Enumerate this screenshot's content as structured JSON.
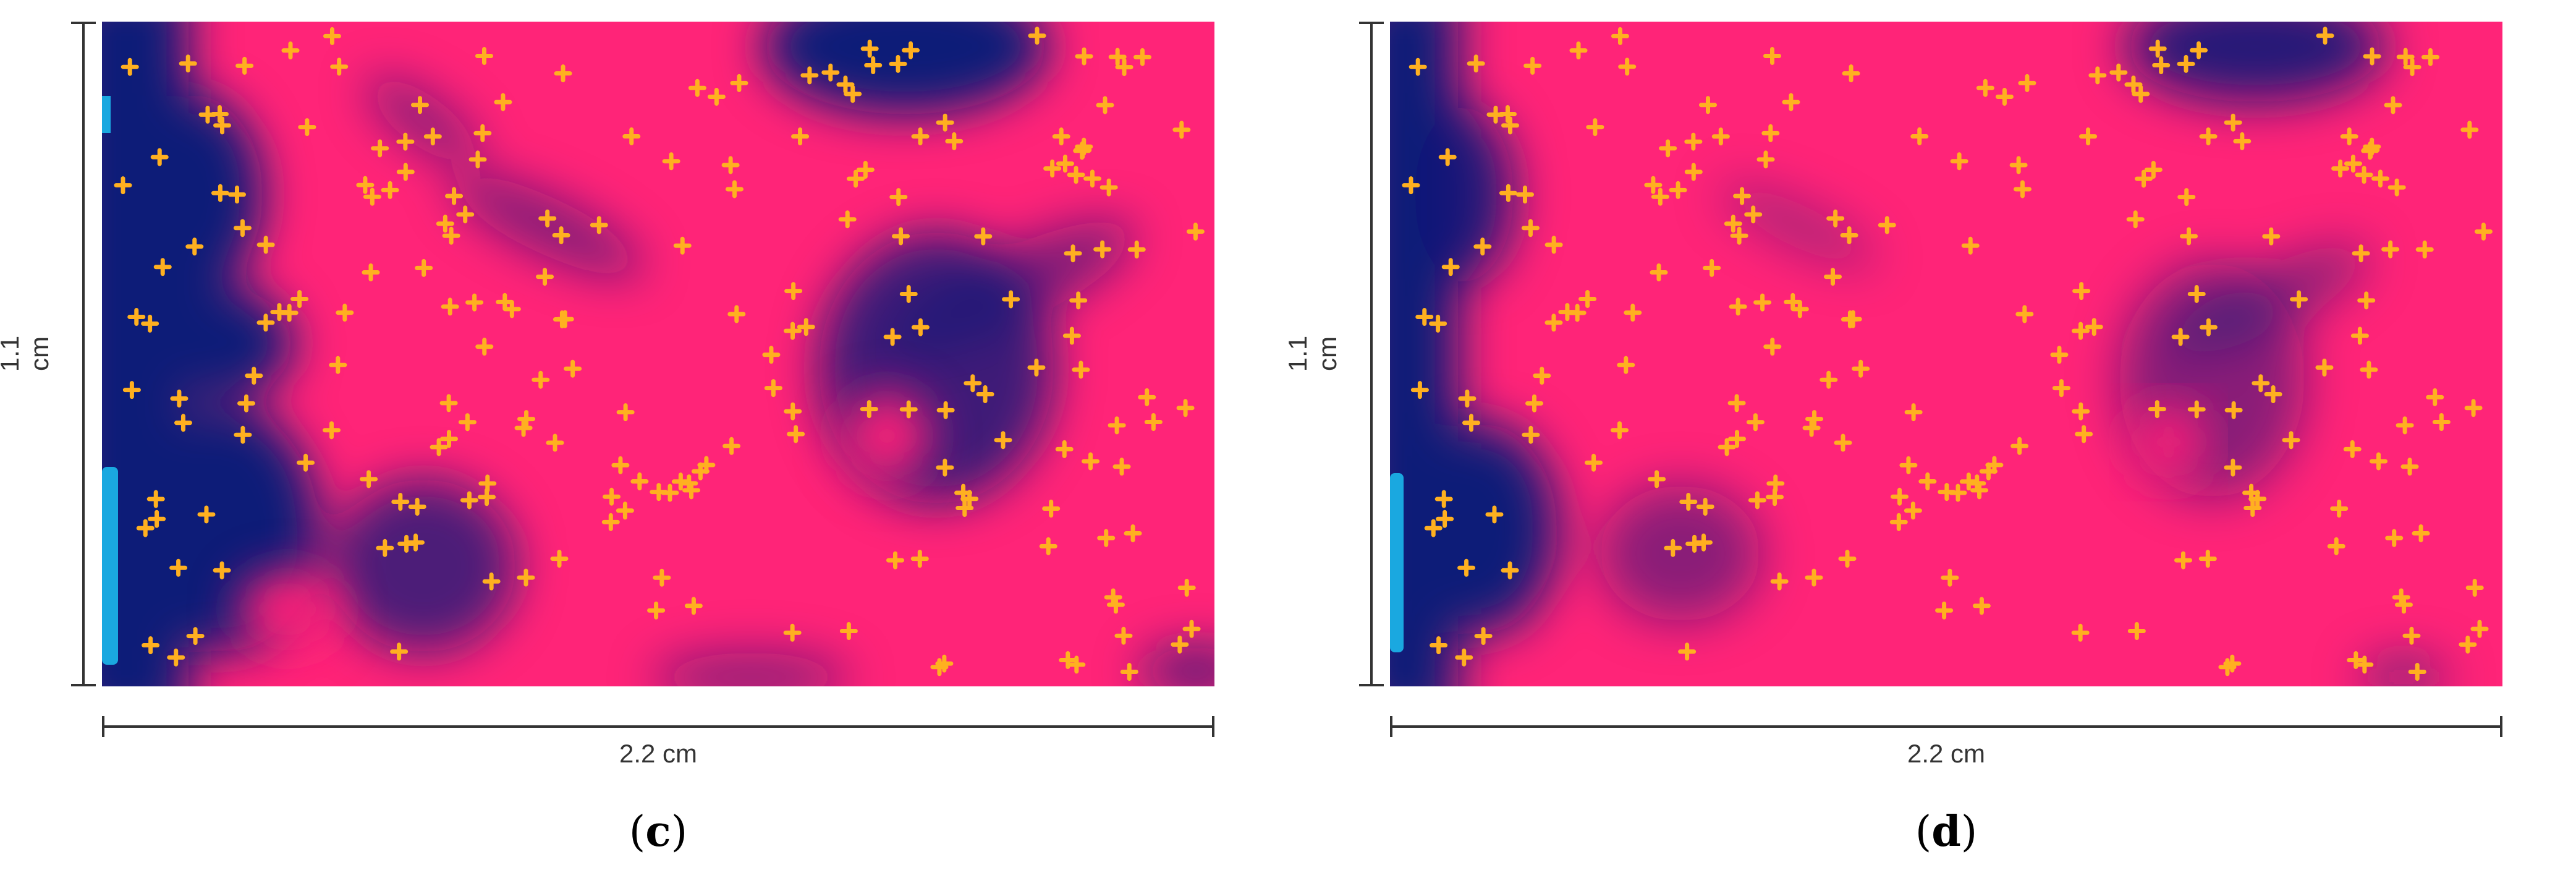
{
  "figure": {
    "panels": [
      {
        "id": "c",
        "caption_open": "(",
        "caption_letter": "c",
        "caption_close": ")",
        "height_label": "1.1 cm",
        "width_label": "2.2 cm",
        "colors": {
          "background": "#ff2478",
          "dark": "#0d1a78",
          "edge": "#1aa8e0",
          "marker": "#ffb020"
        }
      },
      {
        "id": "d",
        "caption_open": "(",
        "caption_letter": "d",
        "caption_close": ")",
        "height_label": "1.1 cm",
        "width_label": "2.2 cm",
        "colors": {
          "background": "#ff2478",
          "dark": "#0d1a78",
          "edge": "#1aa8e0",
          "marker": "#ffb020"
        }
      }
    ]
  }
}
